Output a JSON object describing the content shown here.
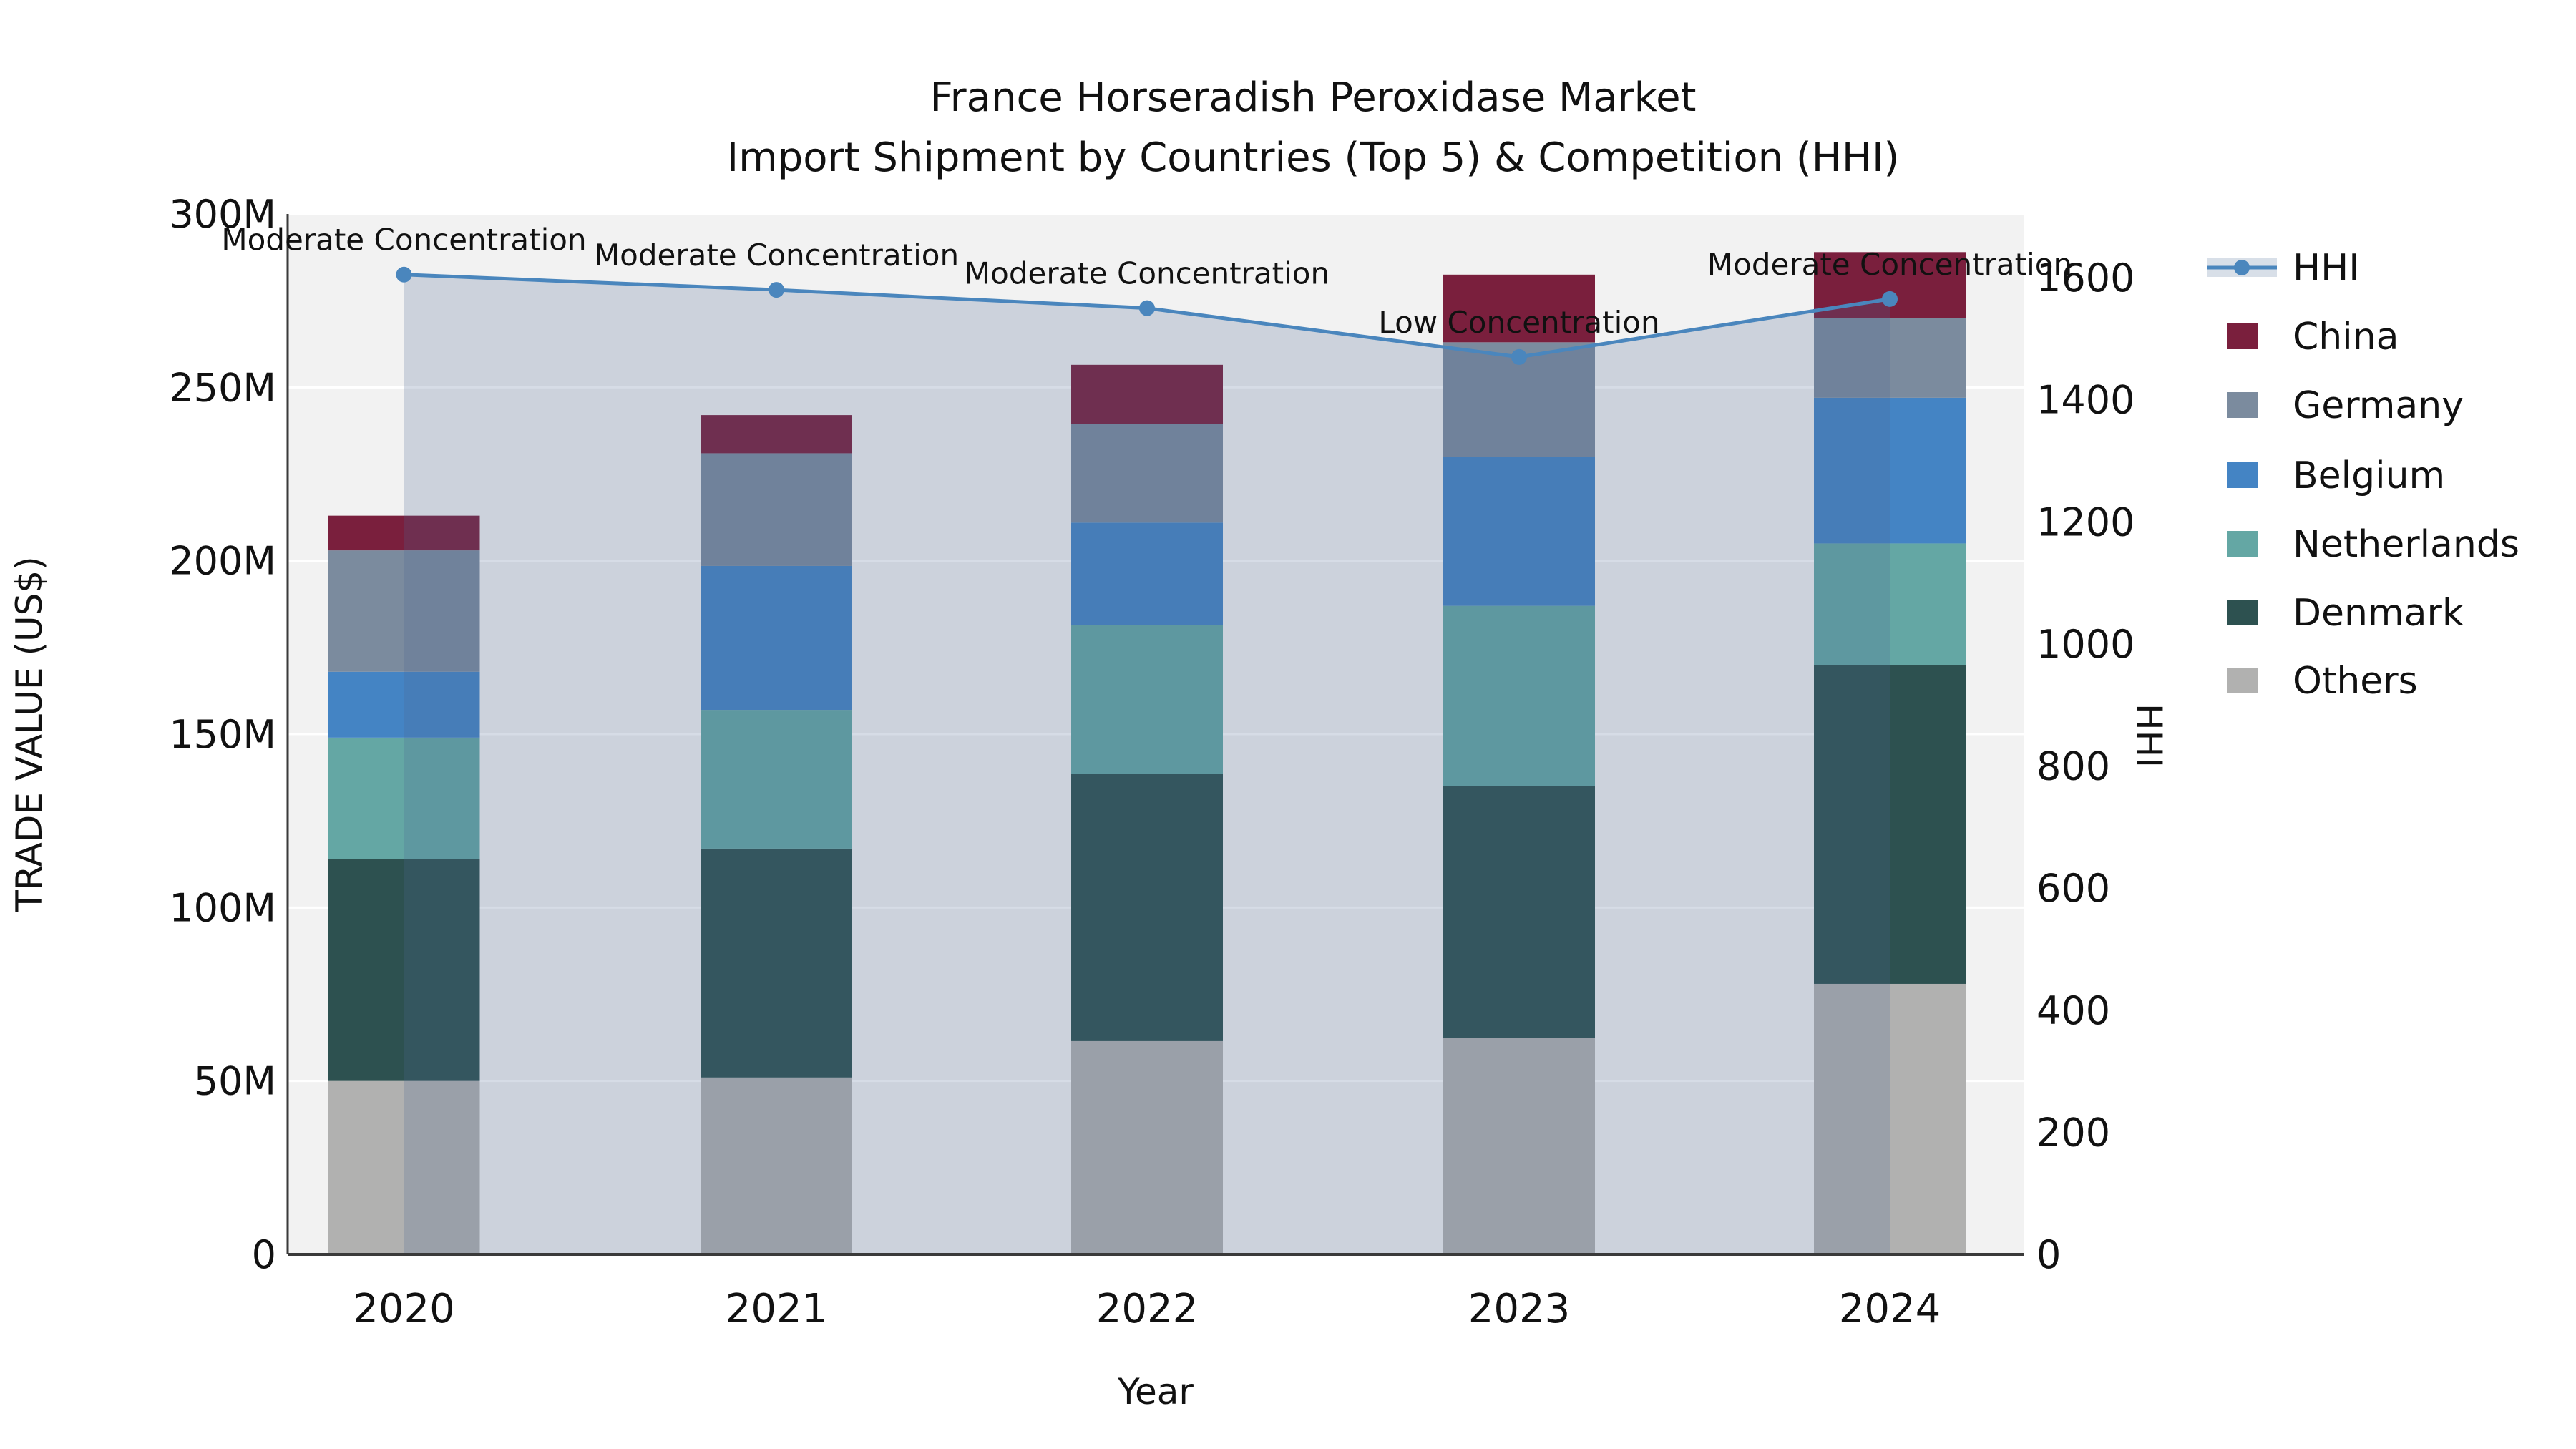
{
  "title": {
    "line1": "France Horseradish Peroxidase Market",
    "line2": "Import Shipment by Countries (Top 5) & Competition (HHI)"
  },
  "axes": {
    "left": {
      "title": "TRADE VALUE (US$)",
      "ticks": [
        "0",
        "50M",
        "100M",
        "150M",
        "200M",
        "250M",
        "300M"
      ],
      "tick_values": [
        0,
        50,
        100,
        150,
        200,
        250,
        300
      ],
      "max": 300
    },
    "right": {
      "title": "HHI",
      "ticks": [
        "0",
        "200",
        "400",
        "600",
        "800",
        "1000",
        "1200",
        "1400",
        "1600"
      ],
      "tick_values": [
        0,
        200,
        400,
        600,
        800,
        1000,
        1200,
        1400,
        1600
      ],
      "max": 1600
    },
    "x": {
      "title": "Year"
    }
  },
  "chart_data": {
    "type": "bar",
    "subtype": "stacked-bars-with-line",
    "categories": [
      "2020",
      "2021",
      "2022",
      "2023",
      "2024"
    ],
    "value_unit": "Million US$",
    "ylim_left": [
      0,
      300
    ],
    "grid": "on",
    "legend_position": "right",
    "stack_order_bottom_to_top": [
      "Others",
      "Denmark",
      "Netherlands",
      "Belgium",
      "Germany",
      "China"
    ],
    "series": [
      {
        "name": "Others",
        "color": "#b1b1b0",
        "values": [
          50,
          51,
          61.5,
          62.5,
          78
        ]
      },
      {
        "name": "Denmark",
        "color": "#2d5150",
        "values": [
          64,
          66,
          77,
          72.5,
          92
        ]
      },
      {
        "name": "Netherlands",
        "color": "#64a7a4",
        "values": [
          35,
          40,
          43,
          52,
          35
        ]
      },
      {
        "name": "Belgium",
        "color": "#4484c4",
        "values": [
          19,
          41.5,
          29.5,
          43,
          42
        ]
      },
      {
        "name": "Germany",
        "color": "#7b8b9e",
        "values": [
          35,
          32.5,
          28.5,
          33,
          23
        ]
      },
      {
        "name": "China",
        "color": "#7a1f3d",
        "values": [
          10,
          11,
          17,
          19.5,
          19
        ]
      }
    ],
    "bar_totals": [
      213,
      242,
      256.5,
      282.5,
      289
    ],
    "line_series": {
      "name": "HHI",
      "axis": "right",
      "color": "#4a86bd",
      "area_fill": "rgba(79,105,145,0.23)",
      "values": [
        1605,
        1580,
        1550,
        1470,
        1565
      ],
      "annotations": [
        "Moderate Concentration",
        "Moderate Concentration",
        "Moderate Concentration",
        "Low Concentration",
        "Moderate Concentration"
      ]
    }
  },
  "legend": {
    "items": [
      {
        "label": "HHI",
        "symbol": "line-marker-band",
        "color": "#4a86bd",
        "band_color": "#d8dfe8"
      },
      {
        "label": "China",
        "symbol": "swatch",
        "color": "#7a1f3d"
      },
      {
        "label": "Germany",
        "symbol": "swatch",
        "color": "#7b8b9e"
      },
      {
        "label": "Belgium",
        "symbol": "swatch",
        "color": "#4484c4"
      },
      {
        "label": "Netherlands",
        "symbol": "swatch",
        "color": "#64a7a4"
      },
      {
        "label": "Denmark",
        "symbol": "swatch",
        "color": "#2d5150"
      },
      {
        "label": "Others",
        "symbol": "swatch",
        "color": "#b1b1b0"
      }
    ]
  },
  "style": {
    "plot_bg": "#f2f2f2",
    "gridline_color": "#ffffff",
    "axis_line_color": "#3a3a3a",
    "text_color": "#111111"
  }
}
